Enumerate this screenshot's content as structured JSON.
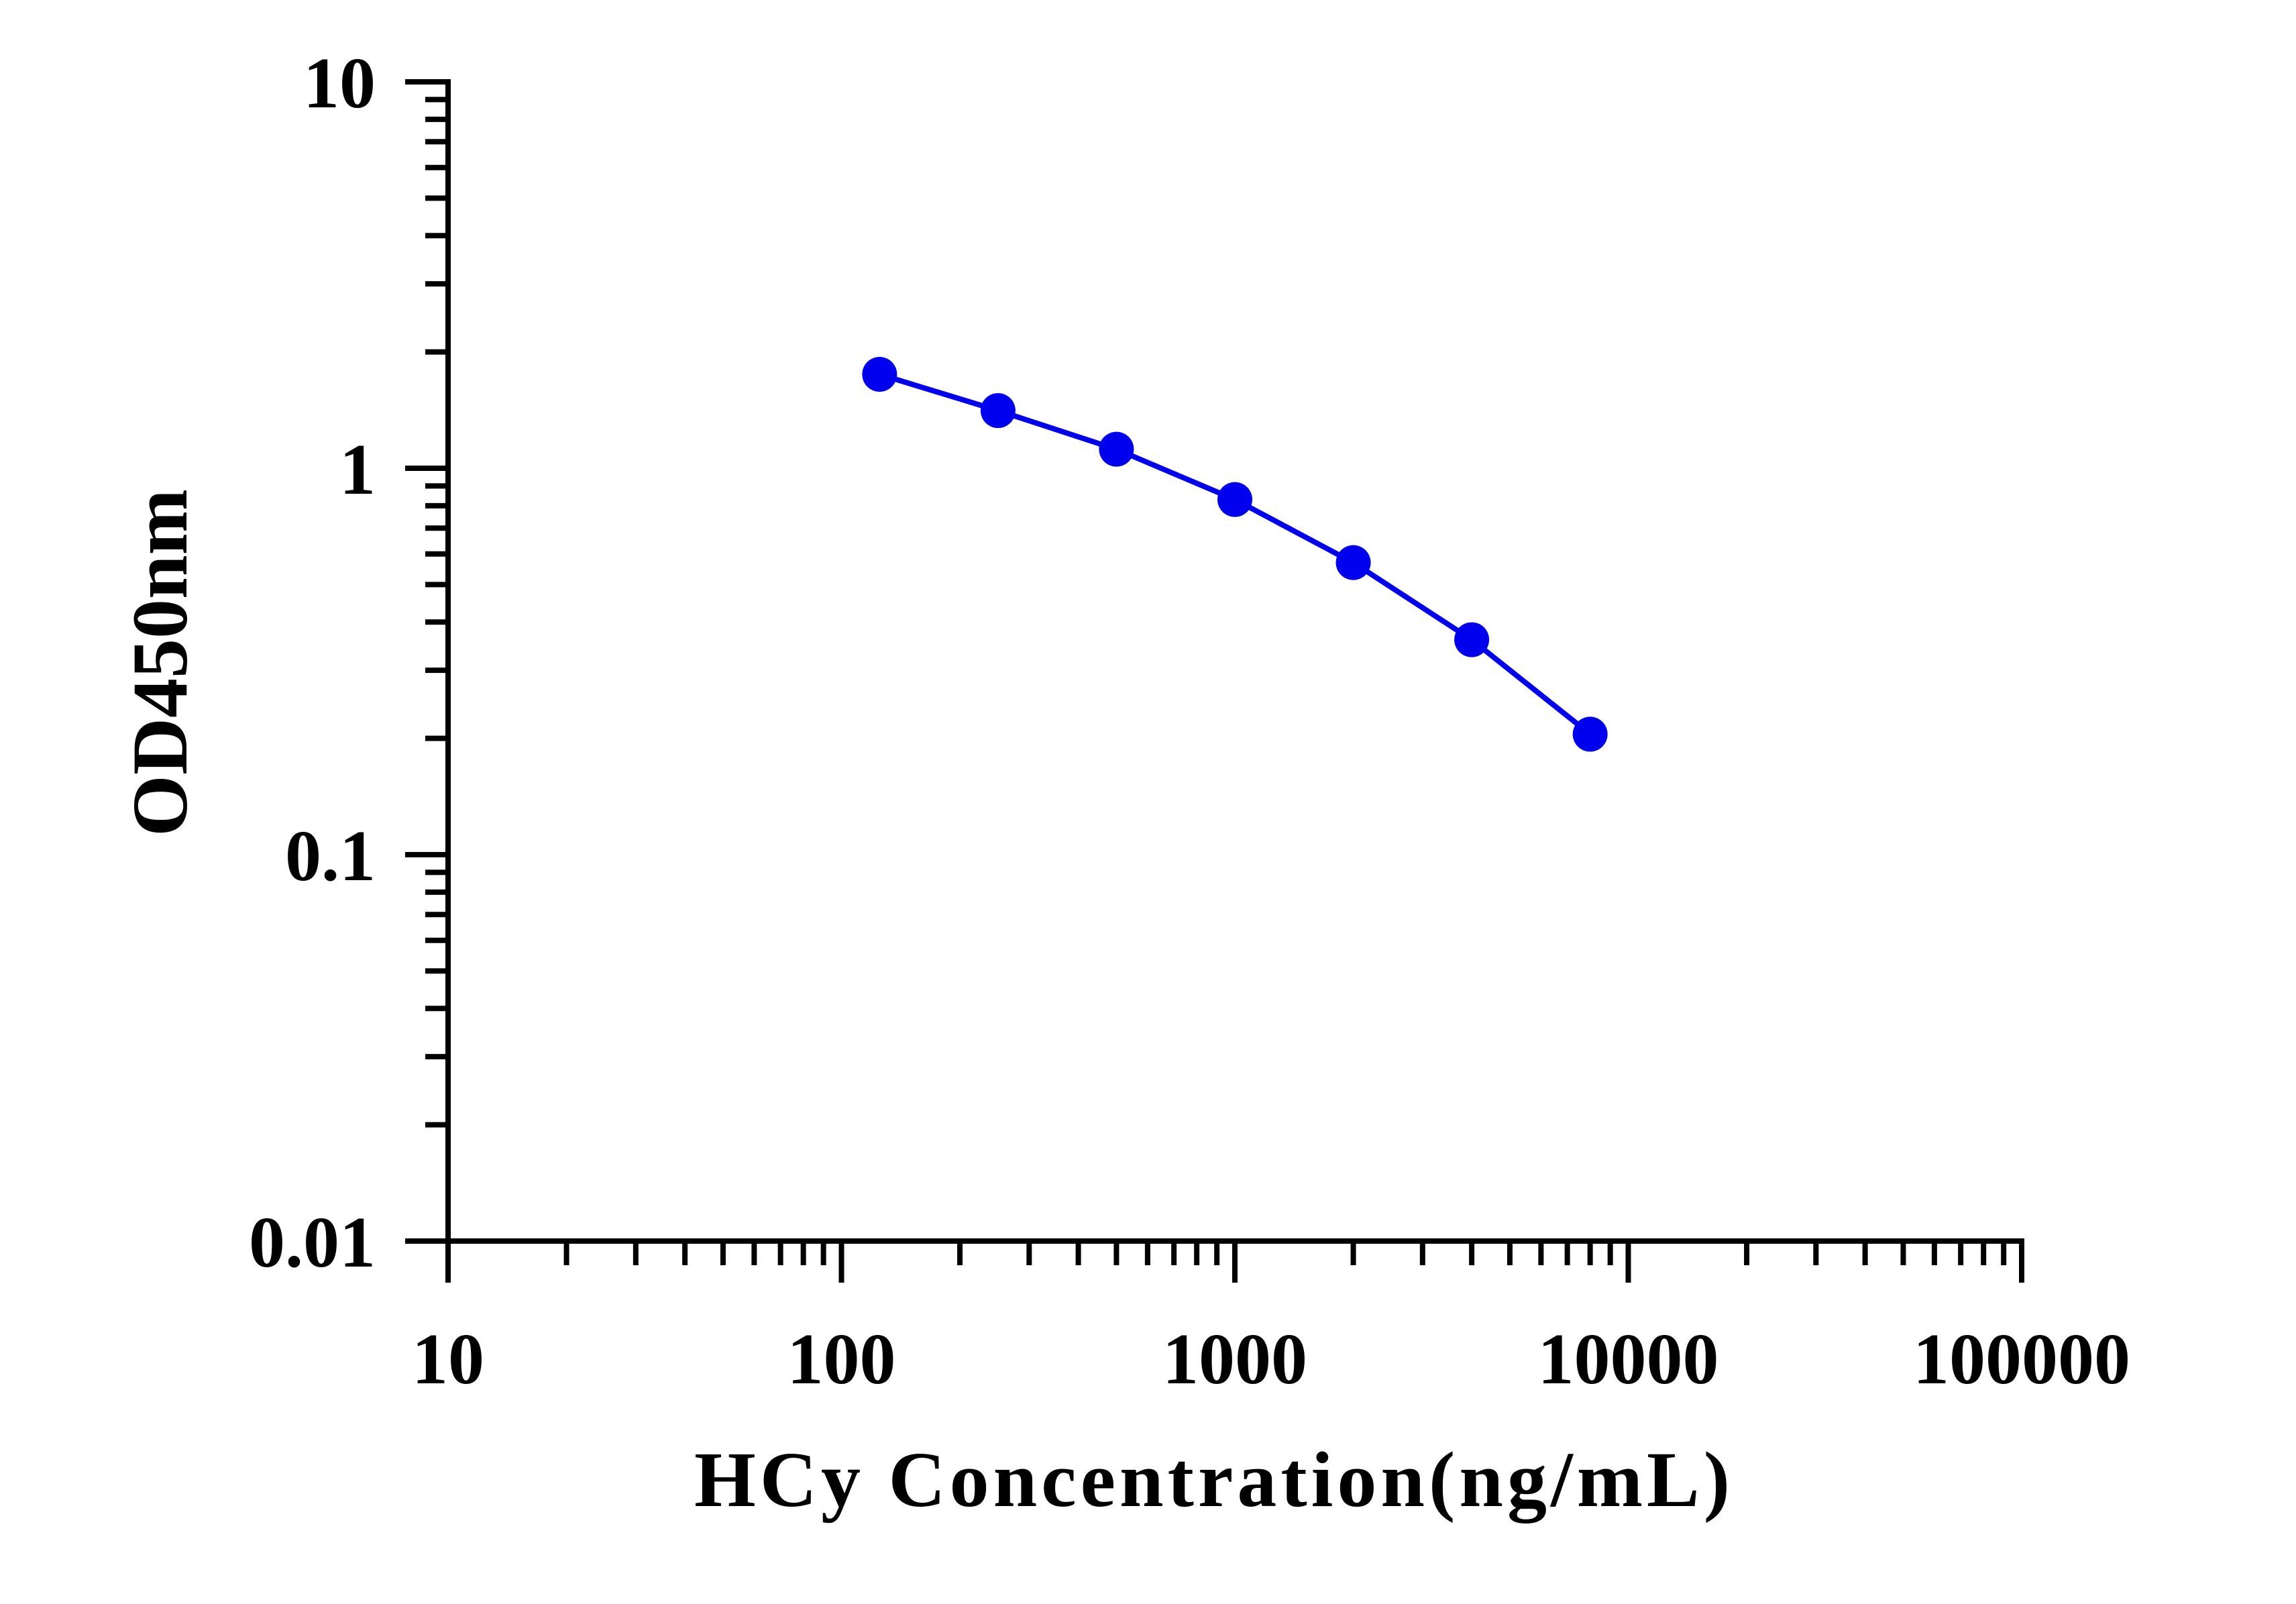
{
  "chart_data": {
    "type": "line",
    "x_scale": "log",
    "y_scale": "log",
    "xlim": [
      10,
      100000
    ],
    "ylim": [
      0.01,
      10
    ],
    "xlabel": "HCy Concentration(ng/mL)",
    "ylabel": "OD450nm",
    "x_ticks": [
      "10",
      "100",
      "1000",
      "10000",
      "100000"
    ],
    "y_ticks": [
      "0.01",
      "0.1",
      "1",
      "10"
    ],
    "grid": false,
    "series": [
      {
        "color": "#0000ee",
        "marker": "circle",
        "x": [
          125,
          250,
          500,
          1000,
          2000,
          4000,
          8000
        ],
        "y": [
          1.75,
          1.41,
          1.12,
          0.83,
          0.57,
          0.36,
          0.205
        ]
      }
    ]
  }
}
